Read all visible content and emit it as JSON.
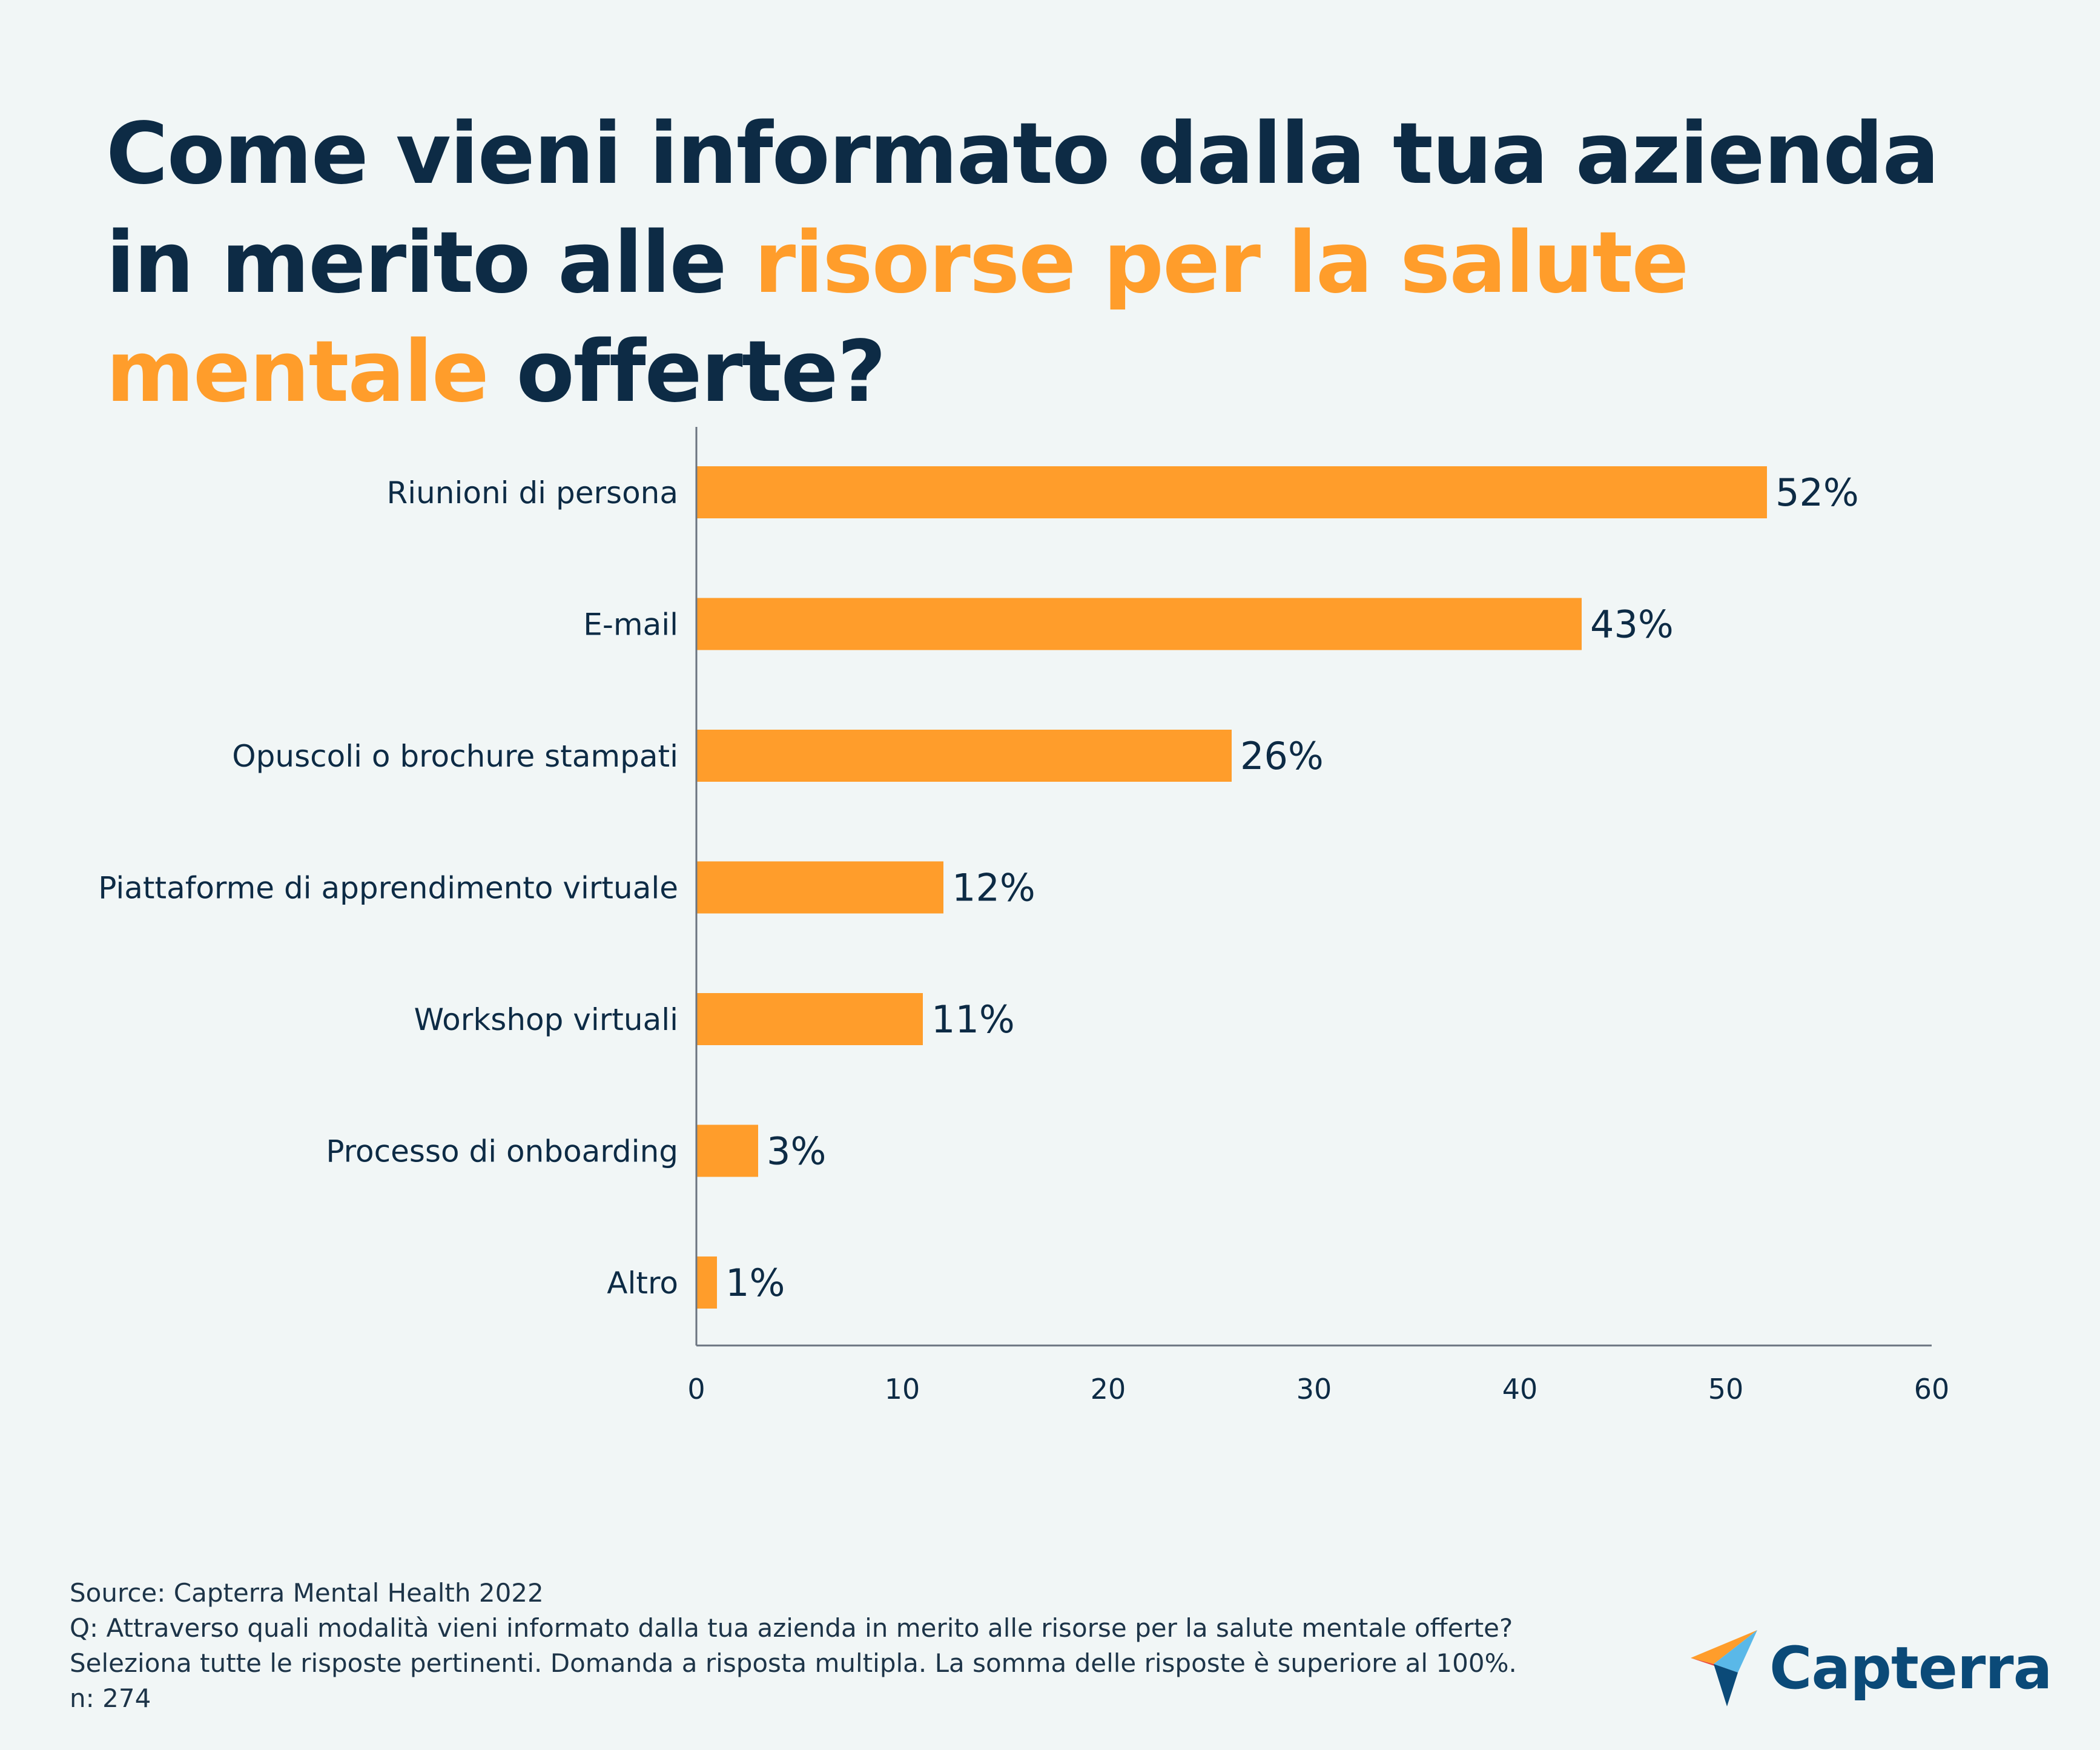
{
  "title": {
    "part1": "Come vieni informato dalla tua azienda in merito alle ",
    "highlight": "risorse per la salute mentale",
    "part2": " offerte?"
  },
  "colors": {
    "bar": "#ff9d2b",
    "text": "#0d2b45",
    "highlight": "#ff9d2b",
    "background": "#f1f6f6"
  },
  "chart_data": {
    "type": "bar",
    "orientation": "horizontal",
    "categories": [
      "Riunioni di persona",
      "E-mail",
      "Opuscoli o brochure stampati",
      "Piattaforme di apprendimento virtuale",
      "Workshop virtuali",
      "Processo di onboarding",
      "Altro"
    ],
    "values": [
      52,
      43,
      26,
      12,
      11,
      3,
      1
    ],
    "value_labels": [
      "52%",
      "43%",
      "26%",
      "12%",
      "11%",
      "3%",
      "1%"
    ],
    "xlim": [
      0,
      60
    ],
    "xticks": [
      0,
      10,
      20,
      30,
      40,
      50,
      60
    ],
    "xlabel": "",
    "ylabel": "",
    "grid": false,
    "legend": "none"
  },
  "footer": {
    "source": "Source: Capterra Mental Health 2022",
    "question": "Q: Attraverso quali modalità vieni informato dalla tua azienda in merito alle risorse per la salute mentale offerte?",
    "note": "Seleziona tutte le risposte pertinenti. Domanda a risposta multipla. La somma delle risposte è superiore al 100%.",
    "sample": "n: 274"
  },
  "logo": {
    "text": "Capterra",
    "icon": "capterra-arrow-icon"
  }
}
